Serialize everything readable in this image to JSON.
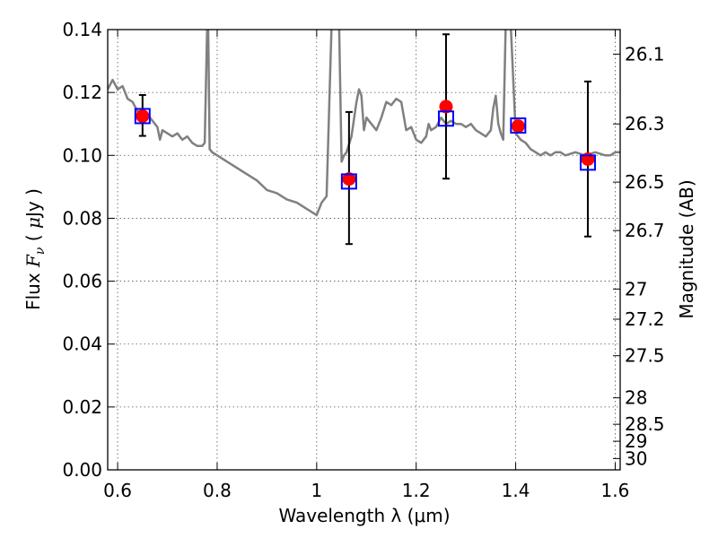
{
  "chart_data": {
    "type": "scatter",
    "title": "",
    "xlabel": "Wavelength  λ (μm)",
    "ylabel": "Flux  F_ν  ( μJy )",
    "ylabel_right": "Magnitude (AB)",
    "xlim": [
      0.58,
      1.61
    ],
    "ylim": [
      0.0,
      0.14
    ],
    "grid": true,
    "x_ticks": [
      0.6,
      0.8,
      1.0,
      1.2,
      1.4,
      1.6
    ],
    "x_tick_labels": [
      "0.6",
      "0.8",
      "1",
      "1.2",
      "1.4",
      "1.6"
    ],
    "y_ticks": [
      0.0,
      0.02,
      0.04,
      0.06,
      0.08,
      0.1,
      0.12,
      0.14
    ],
    "y_tick_labels": [
      "0.00",
      "0.02",
      "0.04",
      "0.06",
      "0.08",
      "0.10",
      "0.12",
      "0.14"
    ],
    "mag_ticks": [
      {
        "label": "26.1",
        "flux": 0.1322
      },
      {
        "label": "26.3",
        "flux": 0.11
      },
      {
        "label": "26.5",
        "flux": 0.0915
      },
      {
        "label": "26.7",
        "flux": 0.0761
      },
      {
        "label": "27",
        "flux": 0.0575
      },
      {
        "label": "27.2",
        "flux": 0.0479
      },
      {
        "label": "27.5",
        "flux": 0.0363
      },
      {
        "label": "28",
        "flux": 0.0229
      },
      {
        "label": "28.5",
        "flux": 0.0145
      },
      {
        "label": "29",
        "flux": 0.0091
      },
      {
        "label": "30",
        "flux": 0.0036
      }
    ],
    "colors": {
      "model_spectrum": "#808080",
      "observed": "#ff0000",
      "model_photometry": "#0000ff",
      "errorbar": "#000000"
    },
    "series": [
      {
        "kind": "line",
        "x": [
          0.58,
          0.59,
          0.6,
          0.61,
          0.62,
          0.63,
          0.64,
          0.66,
          0.68,
          0.685,
          0.69,
          0.7,
          0.71,
          0.72,
          0.73,
          0.74,
          0.75,
          0.76,
          0.77,
          0.775,
          0.78,
          0.782,
          0.785,
          0.79,
          0.8,
          0.82,
          0.84,
          0.86,
          0.88,
          0.9,
          0.92,
          0.94,
          0.96,
          0.98,
          0.99,
          1.0,
          1.01,
          1.02,
          1.03,
          1.035,
          1.04,
          1.045,
          1.05,
          1.055,
          1.06,
          1.07,
          1.08,
          1.085,
          1.09,
          1.095,
          1.1,
          1.11,
          1.12,
          1.13,
          1.14,
          1.15,
          1.16,
          1.17,
          1.18,
          1.19,
          1.2,
          1.21,
          1.22,
          1.225,
          1.23,
          1.24,
          1.25,
          1.26,
          1.27,
          1.28,
          1.29,
          1.3,
          1.31,
          1.32,
          1.33,
          1.34,
          1.345,
          1.35,
          1.355,
          1.36,
          1.365,
          1.37,
          1.375,
          1.38,
          1.385,
          1.39,
          1.4,
          1.41,
          1.42,
          1.43,
          1.44,
          1.45,
          1.46,
          1.47,
          1.48,
          1.49,
          1.5,
          1.52,
          1.54,
          1.56,
          1.58,
          1.59,
          1.6,
          1.61
        ],
        "y": [
          0.121,
          0.124,
          0.121,
          0.122,
          0.118,
          0.117,
          0.114,
          0.113,
          0.109,
          0.105,
          0.108,
          0.107,
          0.106,
          0.107,
          0.105,
          0.106,
          0.104,
          0.103,
          0.103,
          0.104,
          0.142,
          0.14,
          0.102,
          0.101,
          0.1,
          0.098,
          0.096,
          0.094,
          0.092,
          0.089,
          0.088,
          0.086,
          0.085,
          0.083,
          0.082,
          0.081,
          0.085,
          0.087,
          0.142,
          0.142,
          0.142,
          0.142,
          0.098,
          0.1,
          0.101,
          0.106,
          0.117,
          0.121,
          0.119,
          0.108,
          0.112,
          0.11,
          0.108,
          0.112,
          0.117,
          0.116,
          0.118,
          0.117,
          0.108,
          0.109,
          0.105,
          0.104,
          0.106,
          0.11,
          0.108,
          0.109,
          0.112,
          0.11,
          0.111,
          0.11,
          0.11,
          0.109,
          0.11,
          0.108,
          0.107,
          0.106,
          0.107,
          0.108,
          0.115,
          0.119,
          0.11,
          0.107,
          0.105,
          0.142,
          0.142,
          0.142,
          0.107,
          0.105,
          0.104,
          0.102,
          0.101,
          0.1,
          0.101,
          0.1,
          0.101,
          0.101,
          0.1,
          0.101,
          0.1,
          0.101,
          0.1,
          0.1,
          0.101,
          0.101
        ]
      },
      {
        "kind": "points",
        "x": [
          0.65,
          1.065,
          1.26,
          1.405,
          1.545
        ],
        "y": [
          0.1125,
          0.0925,
          0.1155,
          0.1093,
          0.0988
        ],
        "yerr_low": [
          0.1062,
          0.0718,
          0.0926,
          null,
          0.0742
        ],
        "yerr_high": [
          0.1192,
          0.1138,
          0.1385,
          null,
          0.1235
        ]
      },
      {
        "kind": "squares",
        "x": [
          0.65,
          1.065,
          1.26,
          1.405,
          1.545
        ],
        "y": [
          0.1125,
          0.0917,
          0.1117,
          0.1095,
          0.0977
        ]
      }
    ]
  }
}
